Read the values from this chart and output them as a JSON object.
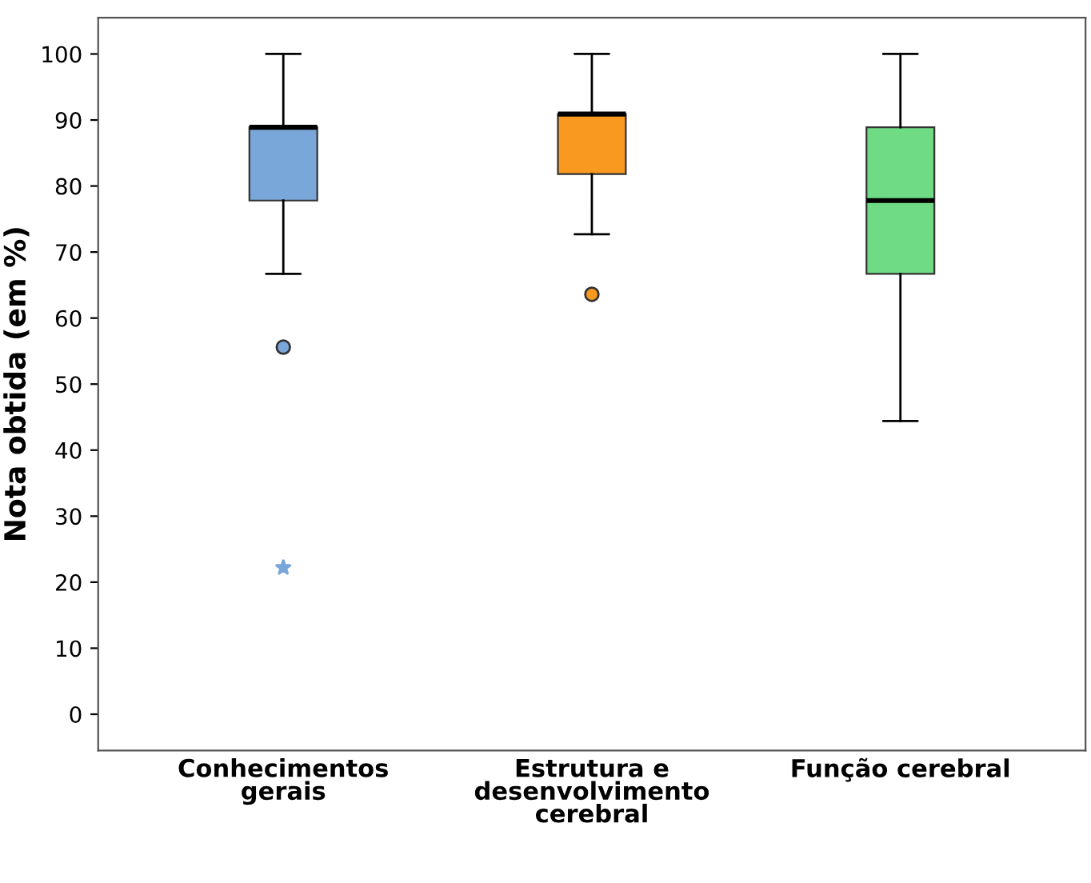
{
  "chart_data": {
    "type": "box",
    "ylabel": "Nota obtida (em %)",
    "categories": [
      "Conhecimentos\ngerais",
      "Estrutura e\ndesenvolvimento\ncerebral",
      "Função cerebral"
    ],
    "colors": [
      "#79a7d9",
      "#f9991f",
      "#6fdb84"
    ],
    "boxes": [
      {
        "low": 66.7,
        "q1": 77.8,
        "median": 88.9,
        "q3": 88.9,
        "high": 100,
        "outliers": [
          55.6,
          22.2
        ]
      },
      {
        "low": 72.7,
        "q1": 81.8,
        "median": 90.9,
        "q3": 90.9,
        "high": 100,
        "outliers": [
          63.6
        ]
      },
      {
        "low": 44.4,
        "q1": 66.7,
        "median": 77.8,
        "q3": 88.9,
        "high": 100
      }
    ],
    "ylim": [
      -5.5,
      105.5
    ],
    "yticks": [
      0,
      10,
      20,
      30,
      40,
      50,
      60,
      70,
      80,
      90,
      100
    ],
    "grid": false
  }
}
